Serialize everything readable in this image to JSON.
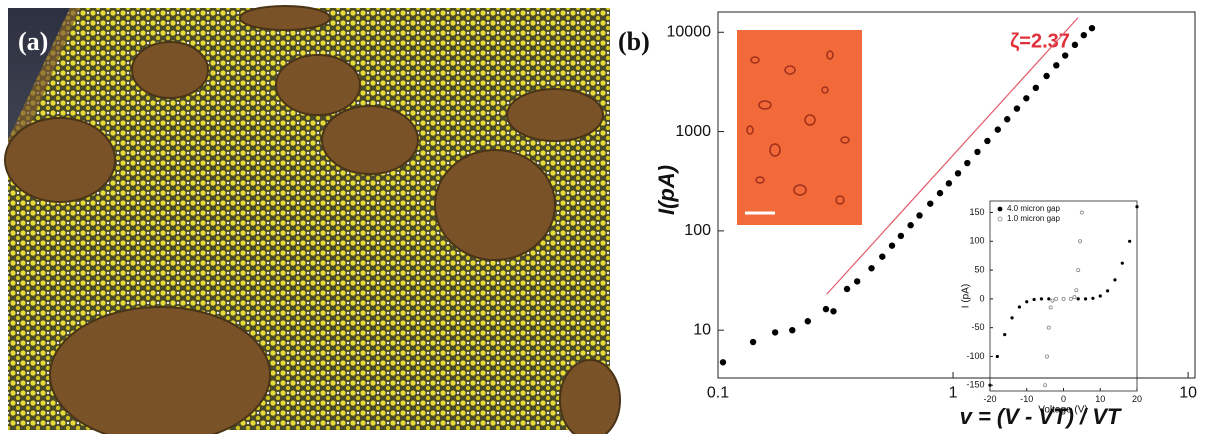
{
  "panel_labels": [
    "(a)",
    "(b)"
  ],
  "chart_data": [
    {
      "type": "scatter",
      "log_x": true,
      "log_y": true,
      "x_label": "v = (V - VT) / VT",
      "y_label": "I(pA)",
      "annotation": "ζ=2.37",
      "xlim": [
        0.1,
        10.7
      ],
      "ylim": [
        3.3,
        16000
      ],
      "xticks": [
        0.1,
        1,
        10
      ],
      "yticks": [
        10,
        100,
        1000,
        10000
      ],
      "series": [
        {
          "color": "#000000",
          "marker": "filled",
          "x": [
            0.105,
            0.141,
            0.175,
            0.207,
            0.241,
            0.288,
            0.31,
            0.354,
            0.391,
            0.45,
            0.5,
            0.55,
            0.6,
            0.66,
            0.72,
            0.8,
            0.88,
            0.96,
            1.05,
            1.15,
            1.27,
            1.4,
            1.55,
            1.7,
            1.87,
            2.05,
            2.25,
            2.5,
            2.75,
            3.0,
            3.3,
            3.6,
            3.9
          ],
          "values": [
            4.75,
            7.6,
            9.5,
            10,
            12.3,
            16.3,
            15.5,
            26,
            31,
            42,
            55,
            71,
            89,
            114,
            143,
            188,
            240,
            301,
            380,
            482,
            624,
            804,
            1046,
            1331,
            1705,
            2165,
            2758,
            3628,
            4648,
            5830,
            7470,
            9350,
            11000
          ]
        },
        {
          "color": "#e05a6a",
          "style": "line",
          "x": [
            0.29,
            3.4
          ],
          "values": [
            23,
            14000
          ]
        }
      ]
    },
    {
      "type": "scatter",
      "x_label": "Voltage (V)",
      "y_label": "I (pA)",
      "xlim": [
        -20,
        20
      ],
      "ylim": [
        -160,
        170
      ],
      "xticks": [
        -20,
        -10,
        0,
        10,
        20
      ],
      "yticks": [
        -150,
        -100,
        -50,
        0,
        50,
        100,
        150
      ],
      "series": [
        {
          "name": "4.0 micron gap",
          "color": "#000000",
          "marker": "filled",
          "x": [
            -20,
            -18,
            -16,
            -14,
            -12,
            -10,
            -8,
            -6,
            -4,
            -2,
            0,
            2,
            4,
            6,
            8,
            10,
            12,
            14,
            16,
            18,
            20
          ],
          "values": [
            -150,
            -100,
            -62,
            -33,
            -14,
            -5,
            -1,
            0,
            0,
            0,
            0,
            0,
            0,
            0,
            1,
            5,
            14,
            33,
            62,
            100,
            160
          ]
        },
        {
          "name": "1.0 micron gap",
          "color": "#888888",
          "marker": "open",
          "x": [
            -5,
            -4.5,
            -4,
            -3.5,
            -3,
            -2,
            0,
            2,
            3,
            3.5,
            4,
            4.5,
            5
          ],
          "values": [
            -150,
            -100,
            -50,
            -15,
            -3,
            0,
            0,
            0,
            3,
            15,
            50,
            100,
            150
          ]
        }
      ]
    }
  ]
}
